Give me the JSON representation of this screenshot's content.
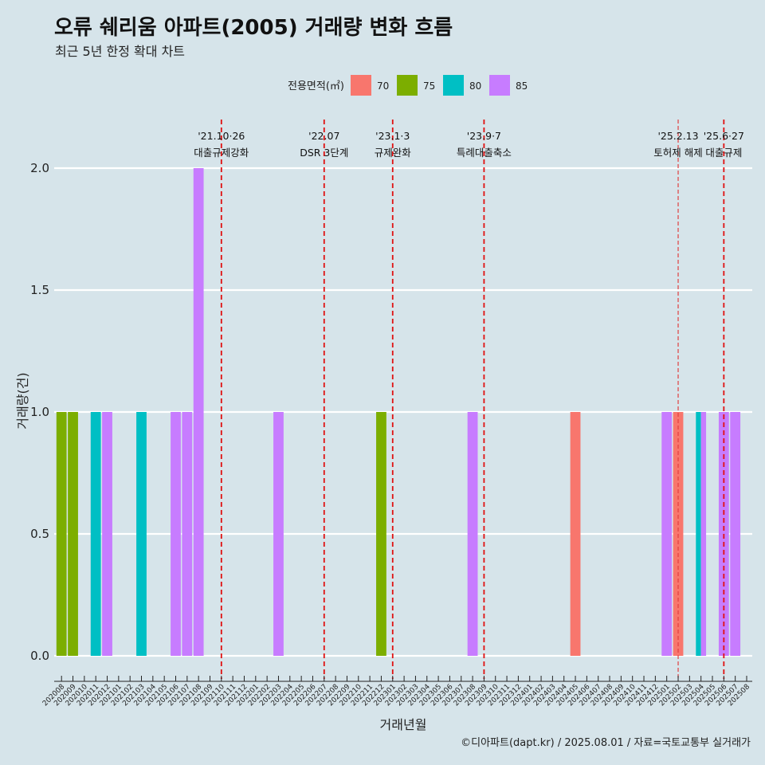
{
  "chart_data": {
    "type": "bar",
    "title": "오류 쉐리움 아파트(2005) 거래량 변화 흐름",
    "subtitle": "최근 5년 한정 확대 차트",
    "xlabel": "거래년월",
    "ylabel": "거래량(건)",
    "caption": "©디아파트(dapt.kr) / 2025.08.01 / 자료=국토교통부 실거래가",
    "ylim": [
      0,
      2
    ],
    "yticks": [
      "0.0",
      "0.5",
      "1.0",
      "1.5",
      "2.0"
    ],
    "grid": true,
    "legend": {
      "title": "전용면적(㎡)",
      "position": "top",
      "items": [
        {
          "label": "70",
          "color": "#F8766D"
        },
        {
          "label": "75",
          "color": "#7CAE00"
        },
        {
          "label": "80",
          "color": "#00BFC4"
        },
        {
          "label": "85",
          "color": "#C77CFF"
        }
      ]
    },
    "categories": [
      "202008",
      "202009",
      "202010",
      "202011",
      "202012",
      "202101",
      "202102",
      "202103",
      "202104",
      "202105",
      "202106",
      "202107",
      "202108",
      "202109",
      "202110",
      "202111",
      "202112",
      "202201",
      "202202",
      "202203",
      "202204",
      "202205",
      "202206",
      "202207",
      "202208",
      "202209",
      "202210",
      "202211",
      "202212",
      "202301",
      "202302",
      "202303",
      "202304",
      "202305",
      "202306",
      "202307",
      "202308",
      "202309",
      "202310",
      "202311",
      "202312",
      "202401",
      "202402",
      "202403",
      "202404",
      "202405",
      "202406",
      "202407",
      "202408",
      "202409",
      "202410",
      "202411",
      "202412",
      "202501",
      "202502",
      "202503",
      "202504",
      "202505",
      "202506",
      "202507",
      "202508"
    ],
    "bars": [
      {
        "month": "202008",
        "area": "75",
        "value": 1
      },
      {
        "month": "202009",
        "area": "75",
        "value": 1
      },
      {
        "month": "202011",
        "area": "80",
        "value": 1
      },
      {
        "month": "202012",
        "area": "85",
        "value": 1
      },
      {
        "month": "202103",
        "area": "80",
        "value": 1
      },
      {
        "month": "202106",
        "area": "85",
        "value": 1
      },
      {
        "month": "202107",
        "area": "85",
        "value": 1
      },
      {
        "month": "202108",
        "area": "85",
        "value": 2
      },
      {
        "month": "202203",
        "area": "85",
        "value": 1
      },
      {
        "month": "202212",
        "area": "75",
        "value": 1
      },
      {
        "month": "202308",
        "area": "85",
        "value": 1
      },
      {
        "month": "202405",
        "area": "70",
        "value": 1
      },
      {
        "month": "202501",
        "area": "85",
        "value": 1
      },
      {
        "month": "202502",
        "area": "70",
        "value": 1
      },
      {
        "month": "202504",
        "area": "80",
        "value": 0.5,
        "stack": "80/85"
      },
      {
        "month": "202504",
        "area": "85",
        "value": 0.5,
        "stack": "80/85"
      },
      {
        "month": "202506",
        "area": "85",
        "value": 1
      },
      {
        "month": "202507",
        "area": "85",
        "value": 1
      }
    ],
    "events": [
      {
        "month": "202110",
        "date": "'21.10·26",
        "label": "대출규제강화"
      },
      {
        "month": "202207",
        "date": "'22.07",
        "label": "DSR 3단계"
      },
      {
        "month": "202301",
        "date": "'23.1·3",
        "label": "규제완화"
      },
      {
        "month": "202309",
        "date": "'23.9·7",
        "label": "특례대출축소"
      },
      {
        "month": "202502",
        "date": "'25.2.13",
        "label": "토허제 해제",
        "minor": true
      },
      {
        "month": "202506",
        "date": "'25.6·27",
        "label": "대출규제"
      }
    ]
  }
}
